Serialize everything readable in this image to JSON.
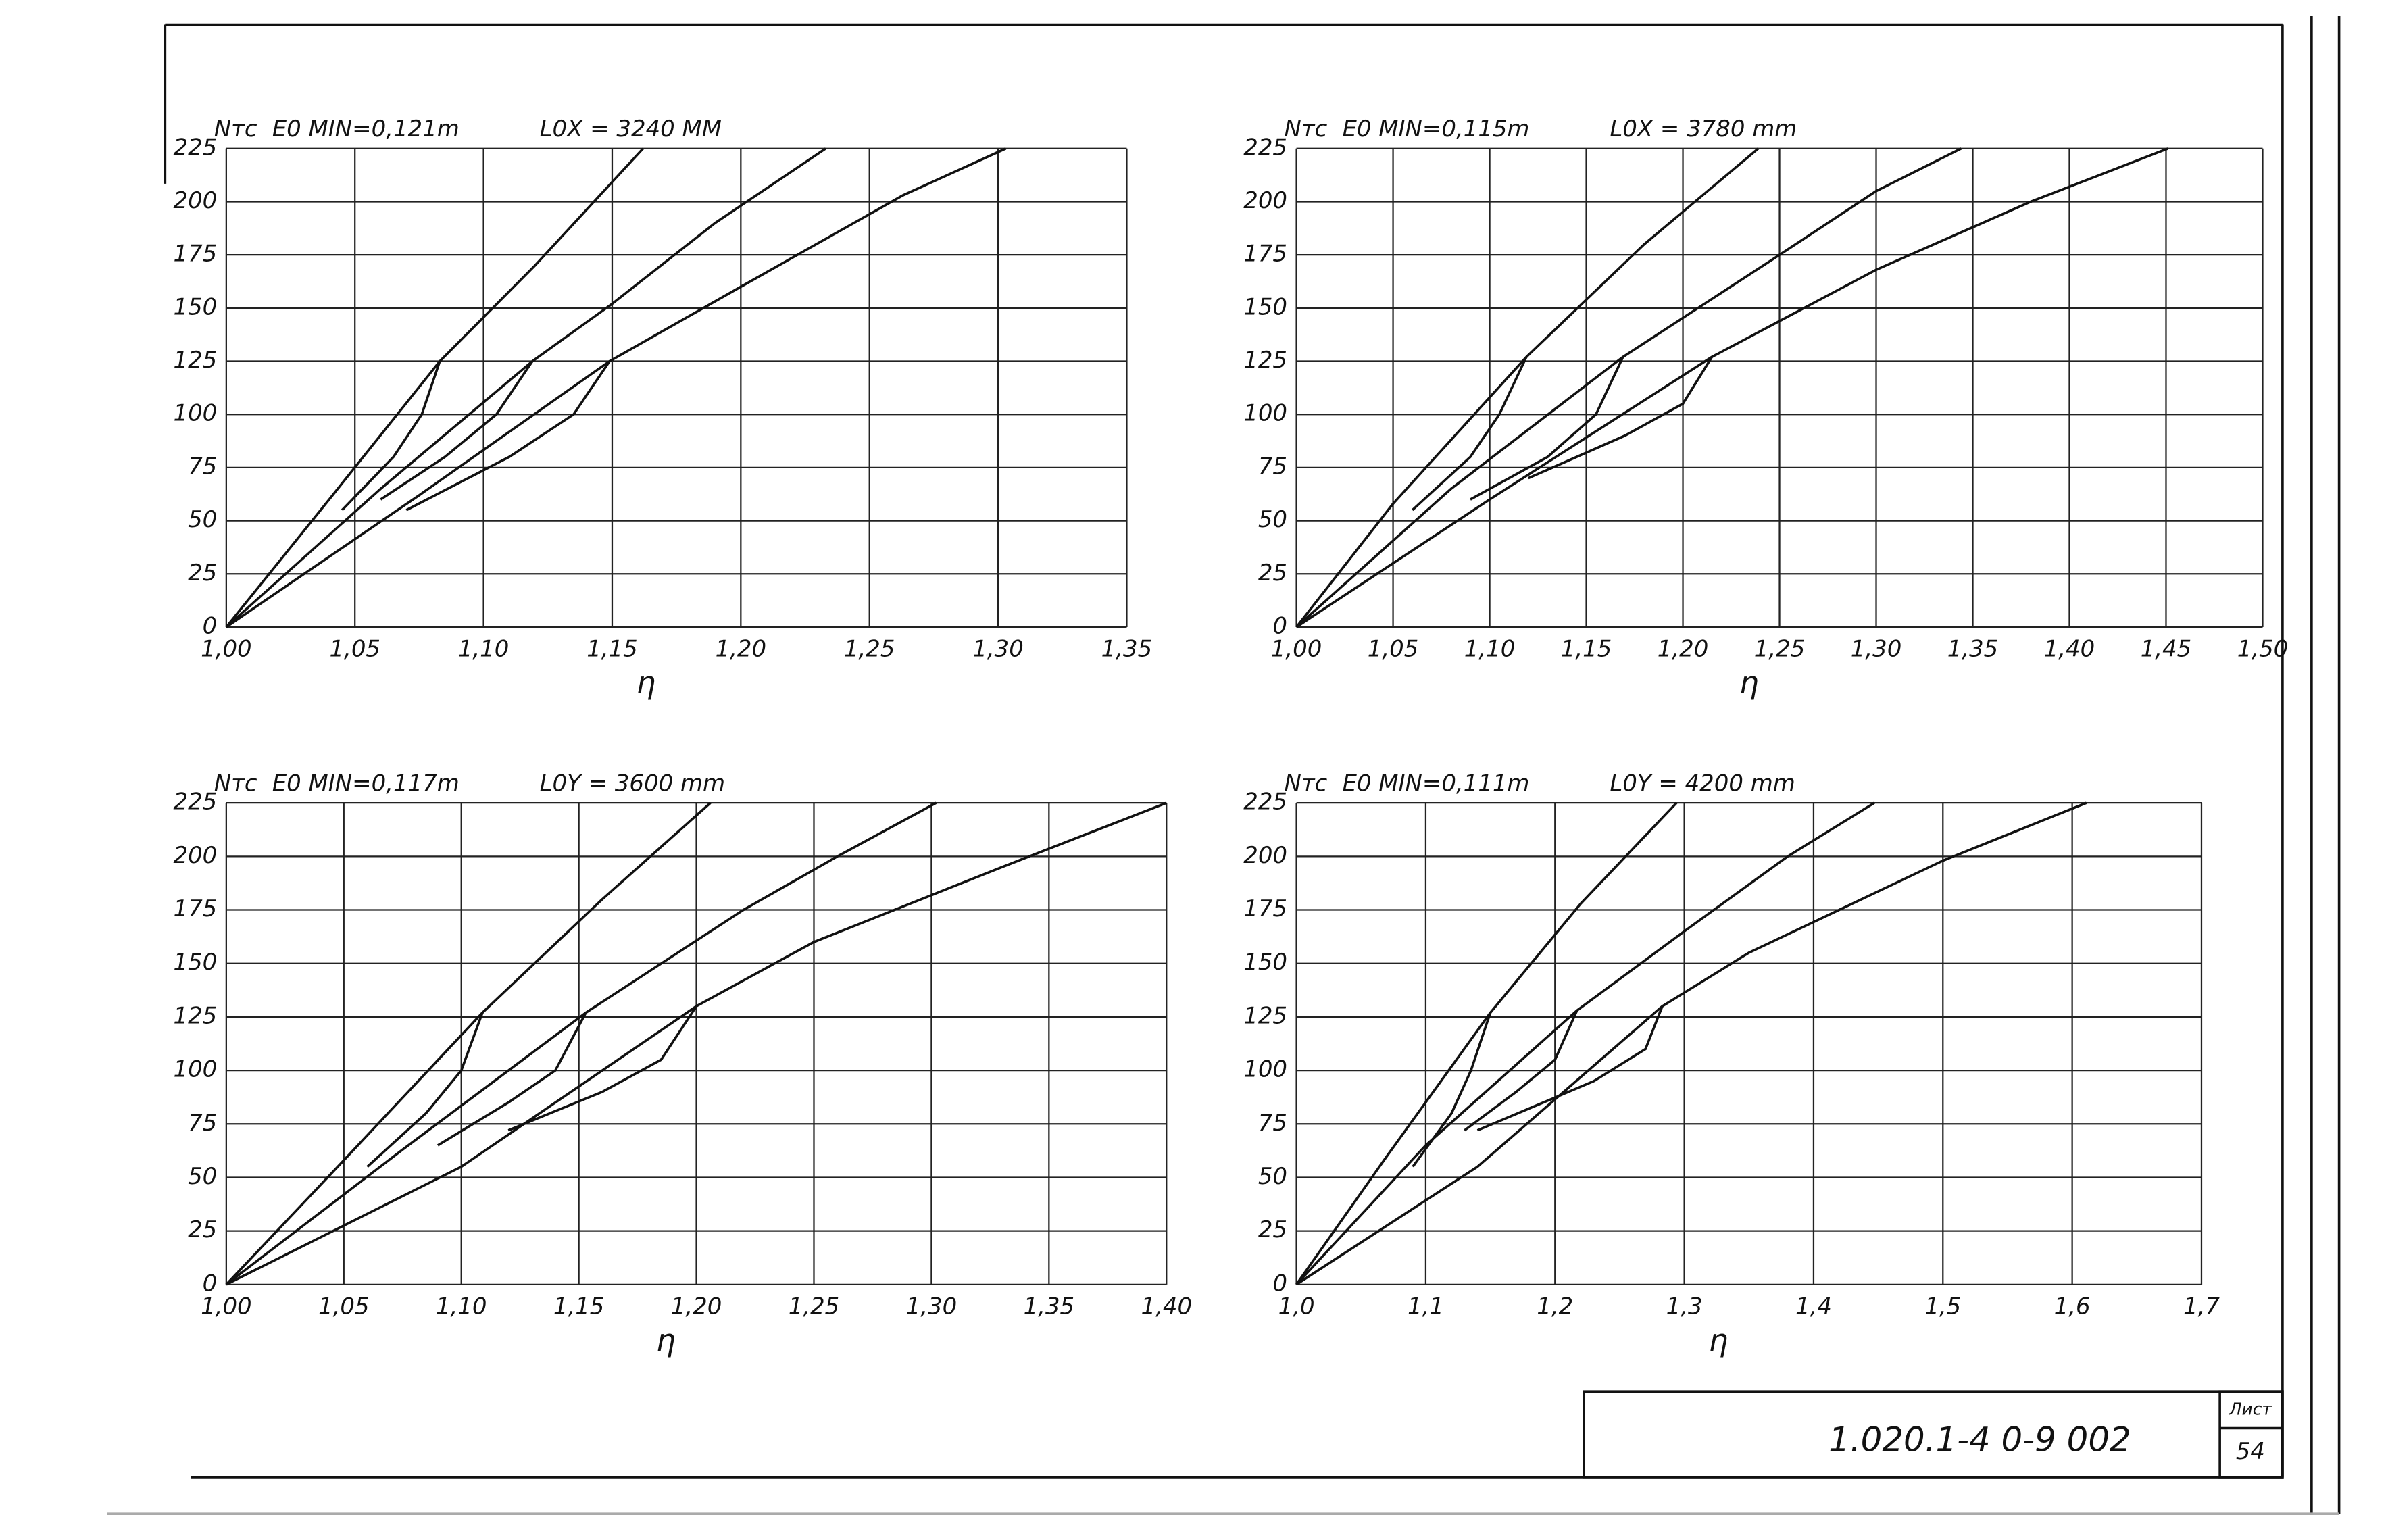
{
  "chart_data": [
    {
      "type": "line",
      "ylabel": "Nтс",
      "annotations": [
        "E0 MIN=0,121m",
        "L0X = 3240 MM"
      ],
      "xlabel": "η",
      "xlim": [
        1.0,
        1.35
      ],
      "ylim": [
        0,
        225
      ],
      "grid": true,
      "xticks": [
        {
          "value": 1.0,
          "label": "1,00"
        },
        {
          "value": 1.05,
          "label": "1,05"
        },
        {
          "value": 1.1,
          "label": "1,10"
        },
        {
          "value": 1.15,
          "label": "1,15"
        },
        {
          "value": 1.2,
          "label": "1,20"
        },
        {
          "value": 1.25,
          "label": "1,25"
        },
        {
          "value": 1.3,
          "label": "1,30"
        },
        {
          "value": 1.35,
          "label": "1,35"
        }
      ],
      "yticks": [
        0,
        25,
        50,
        75,
        100,
        125,
        150,
        175,
        200,
        225
      ],
      "series": [
        {
          "color": "#111111",
          "x": [
            1.0,
            1.04,
            1.083,
            1.12,
            1.162
          ],
          "values": [
            0,
            60,
            125,
            170,
            225
          ]
        },
        {
          "color": "#111111",
          "x": [
            1.0,
            1.06,
            1.119,
            1.15,
            1.19,
            1.233
          ],
          "values": [
            0,
            65,
            125,
            152,
            190,
            225
          ]
        },
        {
          "color": "#111111",
          "x": [
            1.0,
            1.075,
            1.149,
            1.2,
            1.263,
            1.303
          ],
          "values": [
            0,
            62,
            125,
            160,
            203,
            225
          ]
        },
        {
          "color": "#111111",
          "x": [
            1.083,
            1.076,
            1.065,
            1.045
          ],
          "values": [
            125,
            100,
            80,
            55
          ]
        },
        {
          "color": "#111111",
          "x": [
            1.119,
            1.105,
            1.085,
            1.06
          ],
          "values": [
            125,
            100,
            80,
            60
          ]
        },
        {
          "color": "#111111",
          "x": [
            1.149,
            1.135,
            1.11,
            1.07
          ],
          "values": [
            125,
            100,
            80,
            55
          ]
        }
      ]
    },
    {
      "type": "line",
      "ylabel": "Nтс",
      "annotations": [
        "E0 MIN=0,115m",
        "L0X = 3780 mm"
      ],
      "xlabel": "η",
      "xlim": [
        1.0,
        1.5
      ],
      "ylim": [
        0,
        225
      ],
      "grid": true,
      "xticks": [
        {
          "value": 1.0,
          "label": "1,00"
        },
        {
          "value": 1.05,
          "label": "1,05"
        },
        {
          "value": 1.1,
          "label": "1,10"
        },
        {
          "value": 1.15,
          "label": "1,15"
        },
        {
          "value": 1.2,
          "label": "1,20"
        },
        {
          "value": 1.25,
          "label": "1,25"
        },
        {
          "value": 1.3,
          "label": "1,30"
        },
        {
          "value": 1.35,
          "label": "1,35"
        },
        {
          "value": 1.4,
          "label": "1,40"
        },
        {
          "value": 1.45,
          "label": "1,45"
        },
        {
          "value": 1.5,
          "label": "1,50"
        }
      ],
      "yticks": [
        0,
        25,
        50,
        75,
        100,
        125,
        150,
        175,
        200,
        225
      ],
      "series": [
        {
          "color": "#111111",
          "x": [
            1.0,
            1.05,
            1.119,
            1.18,
            1.239
          ],
          "values": [
            0,
            58,
            127,
            180,
            225
          ]
        },
        {
          "color": "#111111",
          "x": [
            1.0,
            1.08,
            1.169,
            1.25,
            1.3,
            1.344
          ],
          "values": [
            0,
            65,
            127,
            175,
            205,
            225
          ]
        },
        {
          "color": "#111111",
          "x": [
            1.0,
            1.1,
            1.215,
            1.3,
            1.38,
            1.451
          ],
          "values": [
            0,
            60,
            127,
            168,
            200,
            225
          ]
        },
        {
          "color": "#111111",
          "x": [
            1.119,
            1.105,
            1.09,
            1.06
          ],
          "values": [
            127,
            100,
            80,
            55
          ]
        },
        {
          "color": "#111111",
          "x": [
            1.169,
            1.155,
            1.13,
            1.09
          ],
          "values": [
            127,
            100,
            80,
            60
          ]
        },
        {
          "color": "#111111",
          "x": [
            1.215,
            1.2,
            1.17,
            1.12
          ],
          "values": [
            127,
            105,
            90,
            70
          ]
        }
      ]
    },
    {
      "type": "line",
      "ylabel": "Nтс",
      "annotations": [
        "E0 MIN=0,117m",
        "L0Y = 3600 mm"
      ],
      "xlabel": "η",
      "xlim": [
        1.0,
        1.4
      ],
      "ylim": [
        0,
        225
      ],
      "grid": true,
      "xticks": [
        {
          "value": 1.0,
          "label": "1,00"
        },
        {
          "value": 1.05,
          "label": "1,05"
        },
        {
          "value": 1.1,
          "label": "1,10"
        },
        {
          "value": 1.15,
          "label": "1,15"
        },
        {
          "value": 1.2,
          "label": "1,20"
        },
        {
          "value": 1.25,
          "label": "1,25"
        },
        {
          "value": 1.3,
          "label": "1,30"
        },
        {
          "value": 1.35,
          "label": "1,35"
        },
        {
          "value": 1.4,
          "label": "1,40"
        }
      ],
      "yticks": [
        0,
        25,
        50,
        75,
        100,
        125,
        150,
        175,
        200,
        225
      ],
      "series": [
        {
          "color": "#111111",
          "x": [
            1.0,
            1.05,
            1.109,
            1.16,
            1.206
          ],
          "values": [
            0,
            58,
            127,
            180,
            225
          ]
        },
        {
          "color": "#111111",
          "x": [
            1.0,
            1.075,
            1.153,
            1.22,
            1.26,
            1.302
          ],
          "values": [
            0,
            63,
            127,
            175,
            200,
            225
          ]
        },
        {
          "color": "#111111",
          "x": [
            1.0,
            1.1,
            1.2,
            1.25,
            1.33,
            1.4
          ],
          "values": [
            0,
            55,
            130,
            160,
            195,
            225
          ]
        },
        {
          "color": "#111111",
          "x": [
            1.109,
            1.1,
            1.085,
            1.06
          ],
          "values": [
            127,
            100,
            80,
            55
          ]
        },
        {
          "color": "#111111",
          "x": [
            1.153,
            1.14,
            1.12,
            1.09
          ],
          "values": [
            127,
            100,
            85,
            65
          ]
        },
        {
          "color": "#111111",
          "x": [
            1.2,
            1.185,
            1.16,
            1.12
          ],
          "values": [
            130,
            105,
            90,
            72
          ]
        }
      ]
    },
    {
      "type": "line",
      "ylabel": "Nтс",
      "annotations": [
        "E0 MIN=0,111m",
        "L0Y = 4200 mm"
      ],
      "xlabel": "η",
      "xlim": [
        1.0,
        1.7
      ],
      "ylim": [
        0,
        225
      ],
      "grid": true,
      "xticks": [
        {
          "value": 1.0,
          "label": "1,0"
        },
        {
          "value": 1.1,
          "label": "1,1"
        },
        {
          "value": 1.2,
          "label": "1,2"
        },
        {
          "value": 1.3,
          "label": "1,3"
        },
        {
          "value": 1.4,
          "label": "1,4"
        },
        {
          "value": 1.5,
          "label": "1,5"
        },
        {
          "value": 1.6,
          "label": "1,6"
        },
        {
          "value": 1.7,
          "label": "1,7"
        }
      ],
      "yticks": [
        0,
        25,
        50,
        75,
        100,
        125,
        150,
        175,
        200,
        225
      ],
      "series": [
        {
          "color": "#111111",
          "x": [
            1.0,
            1.07,
            1.15,
            1.22,
            1.294
          ],
          "values": [
            0,
            60,
            127,
            178,
            225
          ]
        },
        {
          "color": "#111111",
          "x": [
            1.0,
            1.1,
            1.217,
            1.3,
            1.38,
            1.447
          ],
          "values": [
            0,
            65,
            128,
            165,
            200,
            225
          ]
        },
        {
          "color": "#111111",
          "x": [
            1.0,
            1.14,
            1.283,
            1.35,
            1.5,
            1.611
          ],
          "values": [
            0,
            55,
            130,
            155,
            198,
            225
          ]
        },
        {
          "color": "#111111",
          "x": [
            1.15,
            1.135,
            1.12,
            1.09
          ],
          "values": [
            127,
            100,
            80,
            55
          ]
        },
        {
          "color": "#111111",
          "x": [
            1.217,
            1.2,
            1.17,
            1.13
          ],
          "values": [
            128,
            105,
            90,
            72
          ]
        },
        {
          "color": "#111111",
          "x": [
            1.283,
            1.27,
            1.23,
            1.14
          ],
          "values": [
            130,
            110,
            95,
            72
          ]
        }
      ]
    }
  ],
  "title_block": {
    "code": "1.020.1-4 0-9 002",
    "sheet_label": "Лист",
    "sheet": "54"
  }
}
